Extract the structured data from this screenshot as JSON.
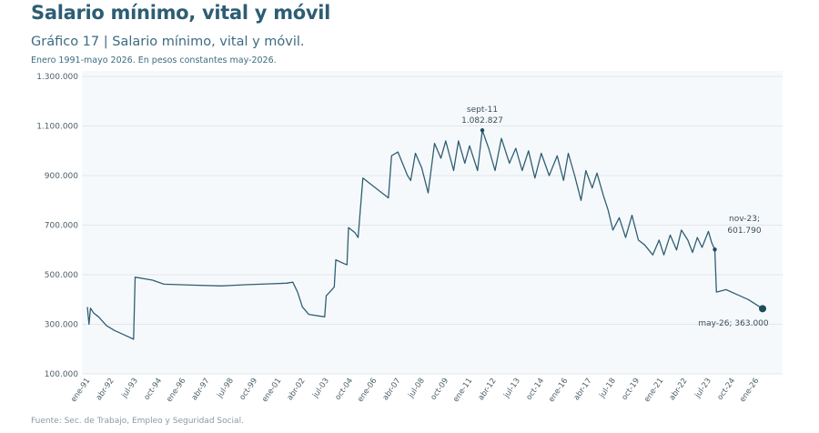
{
  "header": {
    "title": "Salario mínimo, vital y móvil",
    "chart_title": "Gráfico 17 | Salario mínimo, vital y móvil.",
    "chart_subtitle": "Enero 1991-mayo 2026. En pesos constantes may-2026."
  },
  "footer": {
    "source": "Fuente: Sec. de Trabajo, Empleo y Seguridad Social."
  },
  "colors": {
    "line": "#2f5f74",
    "grid": "#e3e8eb",
    "plot_bg": "#f6f9fb",
    "marker": "#1f4b5e"
  },
  "chart_data": {
    "type": "line",
    "title": "Gráfico 17 | Salario mínimo, vital y móvil.",
    "subtitle": "Enero 1991-mayo 2026. En pesos constantes may-2026.",
    "xlabel": "",
    "ylabel": "",
    "ylim": [
      100000,
      1300000
    ],
    "yticks": [
      100000,
      300000,
      500000,
      700000,
      900000,
      1100000,
      1300000
    ],
    "ytick_labels": [
      "100.000",
      "300.000",
      "500.000",
      "700.000",
      "900.000",
      "1.100.000",
      "1.300.000"
    ],
    "xlim": [
      "1991-01",
      "2026-05"
    ],
    "xticks": [
      {
        "label": "ene-91",
        "date": "1991-01"
      },
      {
        "label": "abr-92",
        "date": "1992-04"
      },
      {
        "label": "jul-93",
        "date": "1993-07"
      },
      {
        "label": "oct-94",
        "date": "1994-10"
      },
      {
        "label": "ene-96",
        "date": "1996-01"
      },
      {
        "label": "abr-97",
        "date": "1997-04"
      },
      {
        "label": "jul-98",
        "date": "1998-07"
      },
      {
        "label": "oct-99",
        "date": "1999-10"
      },
      {
        "label": "ene-01",
        "date": "2001-01"
      },
      {
        "label": "abr-02",
        "date": "2002-04"
      },
      {
        "label": "jul-03",
        "date": "2003-07"
      },
      {
        "label": "oct-04",
        "date": "2004-10"
      },
      {
        "label": "ene-06",
        "date": "2006-01"
      },
      {
        "label": "abr-07",
        "date": "2007-04"
      },
      {
        "label": "jul-08",
        "date": "2008-07"
      },
      {
        "label": "oct-09",
        "date": "2009-10"
      },
      {
        "label": "ene-11",
        "date": "2011-01"
      },
      {
        "label": "abr-12",
        "date": "2012-04"
      },
      {
        "label": "jul-13",
        "date": "2013-07"
      },
      {
        "label": "oct-14",
        "date": "2014-10"
      },
      {
        "label": "ene-16",
        "date": "2016-01"
      },
      {
        "label": "abr-17",
        "date": "2017-04"
      },
      {
        "label": "jul-18",
        "date": "2018-07"
      },
      {
        "label": "oct-19",
        "date": "2019-10"
      },
      {
        "label": "ene-21",
        "date": "2021-01"
      },
      {
        "label": "abr-22",
        "date": "2022-04"
      },
      {
        "label": "jul-23",
        "date": "2023-07"
      },
      {
        "label": "oct-24",
        "date": "2024-10"
      },
      {
        "label": "ene-26",
        "date": "2026-01"
      }
    ],
    "grid": "horizontal",
    "series": [
      {
        "points": [
          [
            "1991-01",
            370000
          ],
          [
            "1991-02",
            300000
          ],
          [
            "1991-03",
            365000
          ],
          [
            "1991-05",
            345000
          ],
          [
            "1991-08",
            330000
          ],
          [
            "1992-01",
            295000
          ],
          [
            "1992-06",
            275000
          ],
          [
            "1993-01",
            255000
          ],
          [
            "1993-06",
            240000
          ],
          [
            "1993-07",
            490000
          ],
          [
            "1994-06",
            478000
          ],
          [
            "1995-01",
            462000
          ],
          [
            "1996-06",
            458000
          ],
          [
            "1998-01",
            455000
          ],
          [
            "1999-06",
            460000
          ],
          [
            "2000-06",
            463000
          ],
          [
            "2001-06",
            466000
          ],
          [
            "2001-10",
            470000
          ],
          [
            "2002-01",
            430000
          ],
          [
            "2002-04",
            370000
          ],
          [
            "2002-08",
            340000
          ],
          [
            "2003-06",
            330000
          ],
          [
            "2003-07",
            415000
          ],
          [
            "2003-12",
            450000
          ],
          [
            "2004-01",
            560000
          ],
          [
            "2004-06",
            545000
          ],
          [
            "2004-08",
            540000
          ],
          [
            "2004-09",
            690000
          ],
          [
            "2005-01",
            670000
          ],
          [
            "2005-03",
            650000
          ],
          [
            "2005-06",
            890000
          ],
          [
            "2006-06",
            830000
          ],
          [
            "2006-10",
            810000
          ],
          [
            "2006-12",
            980000
          ],
          [
            "2007-04",
            995000
          ],
          [
            "2007-10",
            900000
          ],
          [
            "2007-12",
            880000
          ],
          [
            "2008-03",
            990000
          ],
          [
            "2008-07",
            930000
          ],
          [
            "2008-11",
            830000
          ],
          [
            "2009-03",
            1030000
          ],
          [
            "2009-07",
            970000
          ],
          [
            "2009-10",
            1040000
          ],
          [
            "2010-03",
            920000
          ],
          [
            "2010-06",
            1040000
          ],
          [
            "2010-10",
            950000
          ],
          [
            "2011-01",
            1020000
          ],
          [
            "2011-06",
            920000
          ],
          [
            "2011-09",
            1082827
          ],
          [
            "2012-01",
            1010000
          ],
          [
            "2012-05",
            920000
          ],
          [
            "2012-09",
            1050000
          ],
          [
            "2013-02",
            950000
          ],
          [
            "2013-06",
            1010000
          ],
          [
            "2013-10",
            920000
          ],
          [
            "2014-02",
            1000000
          ],
          [
            "2014-06",
            890000
          ],
          [
            "2014-10",
            990000
          ],
          [
            "2015-03",
            900000
          ],
          [
            "2015-08",
            980000
          ],
          [
            "2015-12",
            880000
          ],
          [
            "2016-03",
            990000
          ],
          [
            "2016-07",
            900000
          ],
          [
            "2016-11",
            800000
          ],
          [
            "2017-02",
            920000
          ],
          [
            "2017-06",
            850000
          ],
          [
            "2017-09",
            910000
          ],
          [
            "2018-01",
            820000
          ],
          [
            "2018-04",
            760000
          ],
          [
            "2018-07",
            680000
          ],
          [
            "2018-11",
            730000
          ],
          [
            "2019-03",
            650000
          ],
          [
            "2019-07",
            740000
          ],
          [
            "2019-11",
            640000
          ],
          [
            "2020-03",
            620000
          ],
          [
            "2020-08",
            580000
          ],
          [
            "2020-12",
            640000
          ],
          [
            "2021-03",
            580000
          ],
          [
            "2021-07",
            660000
          ],
          [
            "2021-11",
            600000
          ],
          [
            "2022-02",
            680000
          ],
          [
            "2022-06",
            640000
          ],
          [
            "2022-09",
            590000
          ],
          [
            "2022-12",
            650000
          ],
          [
            "2023-03",
            610000
          ],
          [
            "2023-07",
            675000
          ],
          [
            "2023-09",
            630000
          ],
          [
            "2023-11",
            601790
          ],
          [
            "2023-12",
            430000
          ],
          [
            "2024-06",
            440000
          ],
          [
            "2025-01",
            420000
          ],
          [
            "2025-08",
            400000
          ],
          [
            "2026-05",
            363000
          ]
        ]
      }
    ],
    "annotations": [
      {
        "date": "2011-09",
        "value": 1082827,
        "label": "sept-11",
        "value_label": "1.082.827"
      },
      {
        "date": "2023-11",
        "value": 601790,
        "label": "nov-23;",
        "value_label": "601.790"
      },
      {
        "date": "2026-05",
        "value": 363000,
        "label": "may-26; 363.000"
      }
    ]
  }
}
